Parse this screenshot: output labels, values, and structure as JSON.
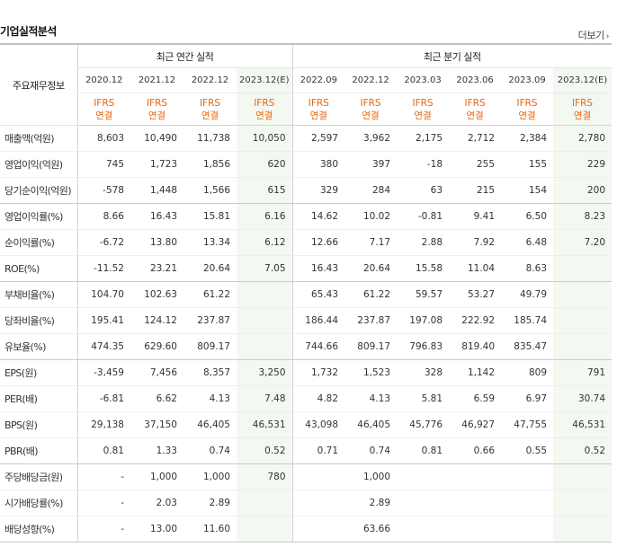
{
  "header": {
    "title": "기업실적분석",
    "more_label": "더보기",
    "more_icon": "chevron-right-icon"
  },
  "table": {
    "row_header": "주요재무정보",
    "groups": [
      "최근 연간 실적",
      "최근 분기 실적"
    ],
    "periods": [
      "2020.12",
      "2021.12",
      "2022.12",
      "2023.12(E)",
      "2022.09",
      "2022.12",
      "2023.03",
      "2023.06",
      "2023.09",
      "2023.12(E)"
    ],
    "basis": [
      "IFRS 연결",
      "IFRS 연결",
      "IFRS 연결",
      "IFRS 연결",
      "IFRS 연결",
      "IFRS 연결",
      "IFRS 연결",
      "IFRS 연결",
      "IFRS 연결",
      "IFRS 연결"
    ],
    "rows": [
      {
        "label": "매출액(억원)",
        "values": [
          "8,603",
          "10,490",
          "11,738",
          "10,050",
          "2,597",
          "3,962",
          "2,175",
          "2,712",
          "2,384",
          "2,780"
        ]
      },
      {
        "label": "영업이익(억원)",
        "values": [
          "745",
          "1,723",
          "1,856",
          "620",
          "380",
          "397",
          "-18",
          "255",
          "155",
          "229"
        ]
      },
      {
        "label": "당기순이익(억원)",
        "values": [
          "-578",
          "1,448",
          "1,566",
          "615",
          "329",
          "284",
          "63",
          "215",
          "154",
          "200"
        ]
      },
      {
        "label": "영업이익률(%)",
        "values": [
          "8.66",
          "16.43",
          "15.81",
          "6.16",
          "14.62",
          "10.02",
          "-0.81",
          "9.41",
          "6.50",
          "8.23"
        ]
      },
      {
        "label": "순이익률(%)",
        "values": [
          "-6.72",
          "13.80",
          "13.34",
          "6.12",
          "12.66",
          "7.17",
          "2.88",
          "7.92",
          "6.48",
          "7.20"
        ]
      },
      {
        "label": "ROE(%)",
        "values": [
          "-11.52",
          "23.21",
          "20.64",
          "7.05",
          "16.43",
          "20.64",
          "15.58",
          "11.04",
          "8.63",
          ""
        ]
      },
      {
        "label": "부채비율(%)",
        "values": [
          "104.70",
          "102.63",
          "61.22",
          "",
          "65.43",
          "61.22",
          "59.57",
          "53.27",
          "49.79",
          ""
        ]
      },
      {
        "label": "당좌비율(%)",
        "values": [
          "195.41",
          "124.12",
          "237.87",
          "",
          "186.44",
          "237.87",
          "197.08",
          "222.92",
          "185.74",
          ""
        ]
      },
      {
        "label": "유보율(%)",
        "values": [
          "474.35",
          "629.60",
          "809.17",
          "",
          "744.66",
          "809.17",
          "796.83",
          "819.40",
          "835.47",
          ""
        ]
      },
      {
        "label": "EPS(원)",
        "values": [
          "-3,459",
          "7,456",
          "8,357",
          "3,250",
          "1,732",
          "1,523",
          "328",
          "1,142",
          "809",
          "791"
        ]
      },
      {
        "label": "PER(배)",
        "values": [
          "-6.81",
          "6.62",
          "4.13",
          "7.48",
          "4.82",
          "4.13",
          "5.81",
          "6.59",
          "6.97",
          "30.74"
        ]
      },
      {
        "label": "BPS(원)",
        "values": [
          "29,138",
          "37,150",
          "46,405",
          "46,531",
          "43,098",
          "46,405",
          "45,776",
          "46,927",
          "47,755",
          "46,531"
        ]
      },
      {
        "label": "PBR(배)",
        "values": [
          "0.81",
          "1.33",
          "0.74",
          "0.52",
          "0.71",
          "0.74",
          "0.81",
          "0.66",
          "0.55",
          "0.52"
        ]
      },
      {
        "label": "주당배당금(원)",
        "values": [
          "-",
          "1,000",
          "1,000",
          "780",
          "",
          "1,000",
          "",
          "",
          "",
          ""
        ]
      },
      {
        "label": "시가배당률(%)",
        "values": [
          "-",
          "2.03",
          "2.89",
          "",
          "",
          "2.89",
          "",
          "",
          "",
          ""
        ]
      },
      {
        "label": "배당성향(%)",
        "values": [
          "-",
          "13.00",
          "11.60",
          "",
          "",
          "63.66",
          "",
          "",
          "",
          ""
        ]
      }
    ]
  },
  "colors": {
    "estimate_bg": "#f3f9f1",
    "negative": "#e1251b",
    "ifrs_label": "#e8650e",
    "header_rule": "#b9c3cc"
  }
}
